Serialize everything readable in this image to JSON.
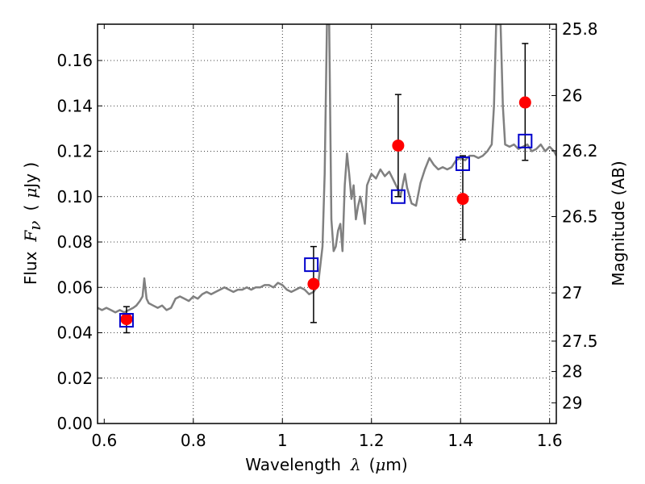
{
  "chart_data": {
    "type": "scatter",
    "title": "",
    "xlabel": {
      "main": "Wavelength",
      "symbol": "λ",
      "unit_open": "(",
      "unit_mu": "μ",
      "unit_rest": "m)"
    },
    "ylabel": {
      "main": "Flux",
      "symbol": "F",
      "subscript": "ν",
      "unit_open": "(",
      "unit_mu": "μ",
      "unit_rest": "Jy )"
    },
    "ylabel_right": "Magnitude (AB)",
    "xlim": [
      0.585,
      1.615
    ],
    "ylim": [
      0.0,
      0.176
    ],
    "grid": true,
    "x_ticks": [
      {
        "v": 0.6,
        "label": "0.6"
      },
      {
        "v": 0.8,
        "label": "0.8"
      },
      {
        "v": 1.0,
        "label": "1"
      },
      {
        "v": 1.2,
        "label": "1.2"
      },
      {
        "v": 1.4,
        "label": "1.4"
      },
      {
        "v": 1.6,
        "label": "1.6"
      }
    ],
    "y_ticks": [
      {
        "v": 0.0,
        "label": "0.00"
      },
      {
        "v": 0.02,
        "label": "0.02"
      },
      {
        "v": 0.04,
        "label": "0.04"
      },
      {
        "v": 0.06,
        "label": "0.06"
      },
      {
        "v": 0.08,
        "label": "0.08"
      },
      {
        "v": 0.1,
        "label": "0.10"
      },
      {
        "v": 0.12,
        "label": "0.12"
      },
      {
        "v": 0.14,
        "label": "0.14"
      },
      {
        "v": 0.16,
        "label": "0.16"
      }
    ],
    "right_ticks": [
      {
        "v": 25.8,
        "label": "25.8"
      },
      {
        "v": 26.0,
        "label": "26"
      },
      {
        "v": 26.2,
        "label": "26.2"
      },
      {
        "v": 26.5,
        "label": "26.5"
      },
      {
        "v": 27.0,
        "label": "27"
      },
      {
        "v": 27.5,
        "label": "27.5"
      },
      {
        "v": 28.0,
        "label": "28"
      },
      {
        "v": 29.0,
        "label": "29"
      }
    ],
    "series": [
      {
        "kind": "line",
        "color": "#808080",
        "x": [
          0.585,
          0.595,
          0.605,
          0.615,
          0.625,
          0.635,
          0.645,
          0.655,
          0.665,
          0.672,
          0.68,
          0.686,
          0.69,
          0.695,
          0.7,
          0.71,
          0.72,
          0.73,
          0.74,
          0.75,
          0.76,
          0.77,
          0.78,
          0.79,
          0.8,
          0.81,
          0.82,
          0.83,
          0.84,
          0.85,
          0.86,
          0.87,
          0.88,
          0.89,
          0.9,
          0.91,
          0.92,
          0.93,
          0.94,
          0.95,
          0.96,
          0.97,
          0.98,
          0.99,
          1.0,
          1.01,
          1.02,
          1.03,
          1.04,
          1.05,
          1.06,
          1.07,
          1.08,
          1.09,
          1.095,
          1.1,
          1.105,
          1.11,
          1.115,
          1.12,
          1.125,
          1.13,
          1.135,
          1.14,
          1.145,
          1.15,
          1.155,
          1.16,
          1.165,
          1.17,
          1.175,
          1.18,
          1.185,
          1.19,
          1.2,
          1.21,
          1.22,
          1.23,
          1.24,
          1.25,
          1.26,
          1.265,
          1.27,
          1.275,
          1.28,
          1.29,
          1.3,
          1.31,
          1.32,
          1.33,
          1.34,
          1.35,
          1.36,
          1.37,
          1.38,
          1.39,
          1.4,
          1.41,
          1.42,
          1.43,
          1.44,
          1.45,
          1.46,
          1.47,
          1.475,
          1.48,
          1.485,
          1.49,
          1.495,
          1.5,
          1.51,
          1.52,
          1.53,
          1.54,
          1.55,
          1.56,
          1.57,
          1.58,
          1.59,
          1.6,
          1.61,
          1.615
        ],
        "y": [
          0.051,
          0.05,
          0.051,
          0.05,
          0.049,
          0.05,
          0.049,
          0.05,
          0.051,
          0.052,
          0.054,
          0.056,
          0.064,
          0.055,
          0.053,
          0.052,
          0.051,
          0.052,
          0.05,
          0.051,
          0.055,
          0.056,
          0.055,
          0.054,
          0.056,
          0.055,
          0.057,
          0.058,
          0.057,
          0.058,
          0.059,
          0.06,
          0.059,
          0.058,
          0.059,
          0.059,
          0.06,
          0.059,
          0.06,
          0.06,
          0.061,
          0.061,
          0.06,
          0.062,
          0.061,
          0.059,
          0.058,
          0.059,
          0.06,
          0.059,
          0.057,
          0.058,
          0.061,
          0.078,
          0.11,
          0.176,
          0.176,
          0.09,
          0.076,
          0.078,
          0.085,
          0.088,
          0.076,
          0.105,
          0.119,
          0.11,
          0.099,
          0.105,
          0.09,
          0.096,
          0.1,
          0.095,
          0.088,
          0.105,
          0.11,
          0.108,
          0.112,
          0.109,
          0.111,
          0.107,
          0.103,
          0.1,
          0.105,
          0.11,
          0.104,
          0.097,
          0.096,
          0.106,
          0.112,
          0.117,
          0.114,
          0.112,
          0.113,
          0.112,
          0.113,
          0.116,
          0.117,
          0.116,
          0.118,
          0.118,
          0.117,
          0.118,
          0.12,
          0.123,
          0.14,
          0.176,
          0.176,
          0.176,
          0.14,
          0.123,
          0.122,
          0.123,
          0.121,
          0.122,
          0.123,
          0.12,
          0.121,
          0.123,
          0.12,
          0.122,
          0.12,
          0.118
        ]
      },
      {
        "kind": "points-with-errors",
        "color": "#ff0000",
        "marker": "circle",
        "x": [
          0.65,
          1.07,
          1.26,
          1.405,
          1.545
        ],
        "y": [
          0.046,
          0.0615,
          0.1225,
          0.099,
          0.1415
        ],
        "err_low": [
          0.04,
          0.0445,
          0.1,
          0.081,
          0.116
        ],
        "err_high": [
          0.0515,
          0.078,
          0.145,
          0.118,
          0.1675
        ]
      },
      {
        "kind": "points",
        "color": "#0000cc",
        "marker": "square-open",
        "x": [
          0.65,
          1.065,
          1.26,
          1.405,
          1.545
        ],
        "y": [
          0.0455,
          0.07,
          0.1,
          0.1145,
          0.1245
        ]
      }
    ]
  }
}
